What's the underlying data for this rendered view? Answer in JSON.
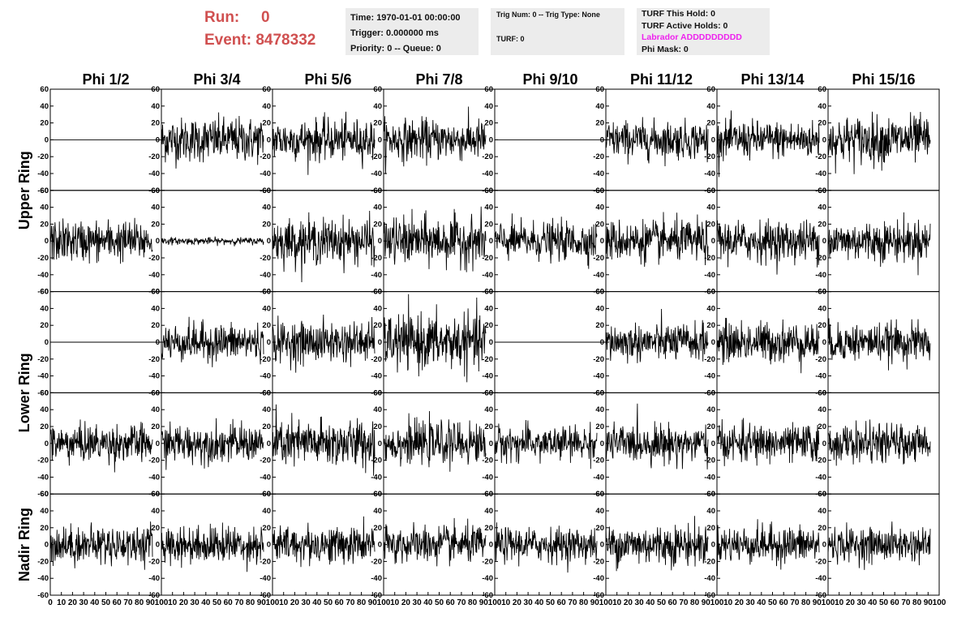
{
  "header": {
    "run_label": "Run:",
    "run_value": "0",
    "event_label": "Event:",
    "event_value": "8478332",
    "time_line": "Time: 1970-01-01 00:00:00",
    "trigger_line": "Trigger: 0.000000 ms",
    "priority_line": "Priority: 0 -- Queue: 0",
    "trig_line": "Trig Num: 0 -- Trig Type: None",
    "turf_line": "TURF: 0",
    "turf_hold_line": "TURF This Hold: 0",
    "turf_active_line": "TURF Active Holds: 0",
    "labrador_line": "Labrador ADDDDDDDDD",
    "phi_mask_line": "Phi Mask: 0",
    "labrador_color": "#ee22ee",
    "run_color": "#d05050"
  },
  "chart_data": {
    "type": "line",
    "columns": [
      "Phi 1/2",
      "Phi 3/4",
      "Phi 5/6",
      "Phi 7/8",
      "Phi 9/10",
      "Phi 11/12",
      "Phi 13/14",
      "Phi 15/16"
    ],
    "ring_labels": [
      "Upper Ring",
      "Lower Ring",
      "Nadir Ring"
    ],
    "rows": 5,
    "xlim": [
      0,
      100
    ],
    "ylim": [
      -60,
      60
    ],
    "y_ticks": [
      -60,
      -40,
      -20,
      0,
      20,
      40,
      60
    ],
    "x_ticks": [
      0,
      10,
      20,
      30,
      40,
      50,
      60,
      70,
      80,
      90,
      100
    ],
    "samples_per_trace": 260,
    "trace_amplitudes": [
      [
        0,
        13,
        12,
        12,
        0,
        11,
        11,
        14
      ],
      [
        12,
        2,
        13,
        14,
        11,
        12,
        12,
        12
      ],
      [
        0,
        11,
        12,
        16,
        0,
        11,
        12,
        11
      ],
      [
        11,
        11,
        14,
        12,
        10,
        11,
        11,
        11
      ],
      [
        11,
        11,
        11,
        11,
        10,
        12,
        11,
        10
      ]
    ],
    "line_color": "#000000"
  }
}
